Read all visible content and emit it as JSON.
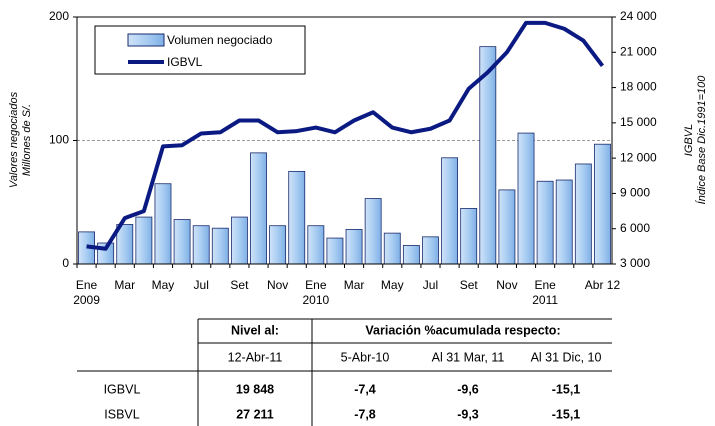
{
  "chart_data": {
    "type": "bar_line",
    "y_label": [
      "Valores negociados",
      "Millones de S/."
    ],
    "y2_label": [
      "IGBVL",
      "Índice Base Dic.1991=100"
    ],
    "categories": [
      "Ene",
      null,
      "Mar",
      null,
      "May",
      null,
      "Jul",
      null,
      "Set",
      null,
      "Nov",
      null,
      "Ene",
      null,
      "Mar",
      null,
      "May",
      null,
      "Jul",
      null,
      "Set",
      null,
      "Nov",
      null,
      "Ene",
      null,
      null,
      "Abr 12"
    ],
    "years": [
      "2009",
      null,
      null,
      null,
      null,
      null,
      null,
      null,
      null,
      null,
      null,
      null,
      "2010",
      null,
      null,
      null,
      null,
      null,
      null,
      null,
      null,
      null,
      null,
      null,
      "2011",
      null,
      null,
      null
    ],
    "series": [
      {
        "name": "Volumen negociado",
        "color": "#a9cdf2",
        "values": [
          26,
          17,
          32,
          38,
          65,
          36,
          31,
          29,
          38,
          90,
          31,
          75,
          31,
          21,
          28,
          53,
          25,
          15,
          22,
          86,
          45,
          176,
          60,
          106,
          67,
          68,
          81,
          97
        ]
      },
      {
        "name": "IGBVL",
        "color": "#0a1a82",
        "axis": "y2",
        "values": [
          4500,
          4300,
          6900,
          7500,
          13000,
          13100,
          14100,
          14200,
          15200,
          15200,
          14200,
          14300,
          14600,
          14200,
          15200,
          15900,
          14600,
          14200,
          14500,
          15200,
          17900,
          19300,
          21000,
          23500,
          23500,
          23000,
          22000,
          19848
        ]
      }
    ],
    "ylim": [
      0,
      200
    ],
    "yticks": [
      0,
      100,
      200
    ],
    "y2lim": [
      3000,
      24000
    ],
    "y2ticks": [
      {
        "value": 3000,
        "label": "3 000"
      },
      {
        "value": 6000,
        "label": "6 000"
      },
      {
        "value": 9000,
        "label": "9 000"
      },
      {
        "value": 12000,
        "label": "12 000"
      },
      {
        "value": 15000,
        "label": "15 000"
      },
      {
        "value": 18000,
        "label": "18 000"
      },
      {
        "value": 21000,
        "label": "21 000"
      },
      {
        "value": 24000,
        "label": "24 000"
      }
    ],
    "grid": true
  },
  "table": {
    "header": [
      "Nivel al:",
      "Variación %acumulada respecto:"
    ],
    "subheader": [
      "12-Abr-11",
      "5-Abr-10",
      "Al 31 Mar, 11",
      "Al 31 Dic, 10"
    ],
    "rows": [
      [
        "IGBVL",
        "19 848",
        "-7,4",
        "-9,6",
        "-15,1"
      ],
      [
        "ISBVL",
        "27 211",
        "-7,8",
        "-9,3",
        "-15,1"
      ]
    ]
  }
}
